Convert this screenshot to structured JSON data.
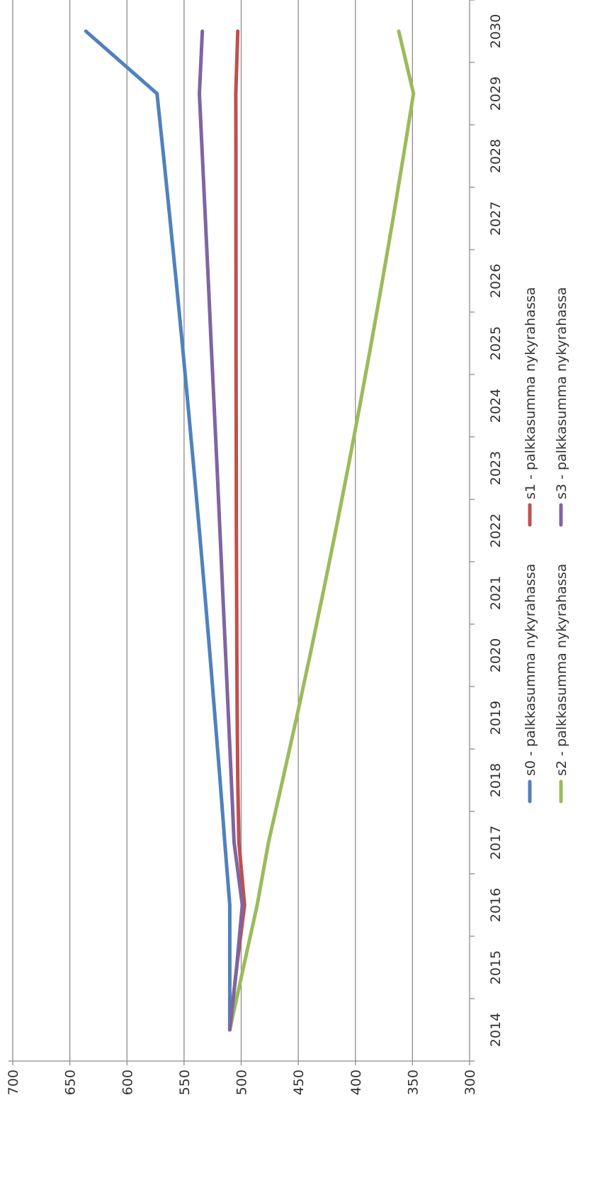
{
  "chart_data": {
    "type": "line",
    "orientation": "rotated-90-clockwise",
    "title": "",
    "xlabel": "",
    "ylabel": "",
    "x_categories": [
      "2014",
      "2015",
      "2016",
      "2017",
      "2018",
      "2019",
      "2020",
      "2021",
      "2022",
      "2023",
      "2024",
      "2025",
      "2026",
      "2027",
      "2028",
      "2029",
      "2030"
    ],
    "y_ticks": [
      "300",
      "350",
      "400",
      "450",
      "500",
      "550",
      "600",
      "650",
      "700"
    ],
    "ylim": [
      300,
      700
    ],
    "grid": "major-y",
    "legend_position": "bottom",
    "series": [
      {
        "name": "s0 - palkkasumma nykyrahassa",
        "color": "#4f81bd",
        "values": [
          510,
          510,
          510,
          514.3,
          518.5,
          522.9,
          527.3,
          531.9,
          536.6,
          541.5,
          546.5,
          551.6,
          556.9,
          562.4,
          568.0,
          573.7,
          636
        ]
      },
      {
        "name": "s1 - palkkasumma nykyrahassa",
        "color": "#c0504d",
        "values": [
          510,
          504,
          497,
          502.0,
          503.0,
          503.5,
          503.8,
          504.0,
          504.2,
          504.3,
          504.4,
          504.5,
          504.5,
          504.6,
          504.6,
          504.7,
          503
        ]
      },
      {
        "name": "s2 - palkkasumma nykyrahassa",
        "color": "#9bbb59",
        "values": [
          510,
          498,
          486,
          476.1,
          463.7,
          451.5,
          439.7,
          428.3,
          417.2,
          406.5,
          396.1,
          386.1,
          376.4,
          367.0,
          357.9,
          349.1,
          362
        ]
      },
      {
        "name": "s3 - palkkasumma nykyrahassa",
        "color": "#8064a2",
        "values": [
          510,
          504,
          499,
          506.2,
          508.6,
          511.1,
          513.6,
          516.1,
          518.6,
          521.1,
          523.7,
          526.3,
          528.8,
          531.4,
          534.0,
          536.6,
          534
        ]
      }
    ]
  }
}
